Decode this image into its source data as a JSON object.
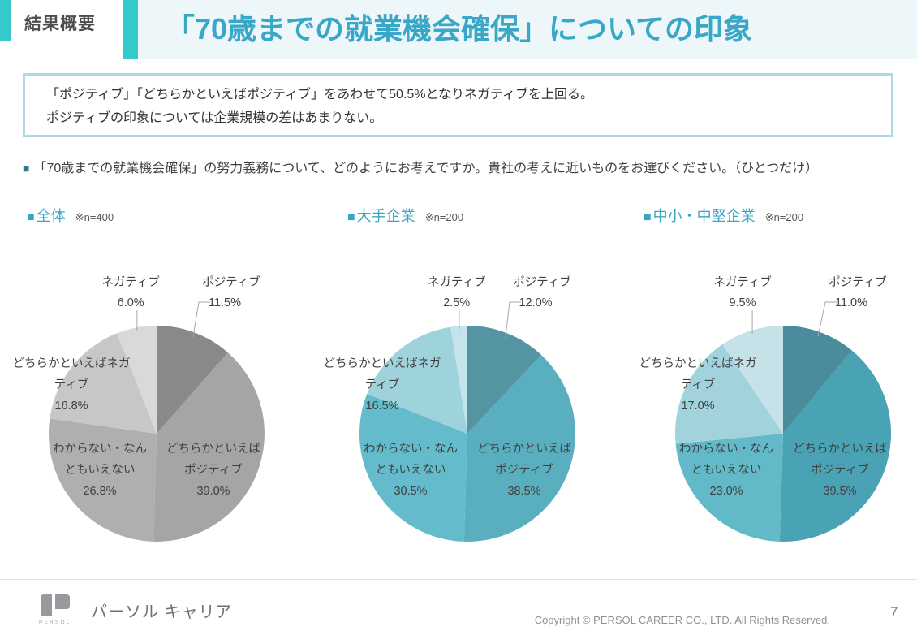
{
  "page": {
    "tag": "結果概要",
    "title": "「70歳までの就業機会確保」についての印象",
    "bullet": "■",
    "summary_lines": [
      "「ポジティブ」「どちらかといえばポジティブ」をあわせて50.5%となりネガティブを上回る。",
      "ポジティブの印象については企業規模の差はあまりない。"
    ],
    "question": "「70歳までの就業機会確保」の努力義務について、どのようにお考えですか。貴社の考えに近いものをお選びください。（ひとつだけ）"
  },
  "colors": {
    "accent": "#36c9cc",
    "title_bg": "#edf6f9",
    "title_text": "#38a7c8",
    "header_teal": "#3aa6c6",
    "question_bullet": "#2e7b90",
    "summary_border": "#abdbe8",
    "label_text": "#404040",
    "leader_line": "#a6a6a6",
    "footer_gray": "#8f9194"
  },
  "chart_data": [
    {
      "type": "pie",
      "title": "全体",
      "n_label": "※n=400",
      "categories": [
        "ポジティブ",
        "どちらかといえばポジティブ",
        "わからない・なんともいえない",
        "どちらかといえばネガティブ",
        "ネガティブ"
      ],
      "values": [
        11.5,
        39.0,
        26.8,
        16.8,
        6.0
      ],
      "value_labels": [
        "11.5%",
        "39.0%",
        "26.8%",
        "16.8%",
        "6.0%"
      ],
      "colors": [
        "#8a8888",
        "#a6a4a4",
        "#b1afae",
        "#c8c6c6",
        "#dad8d8"
      ]
    },
    {
      "type": "pie",
      "title": "大手企業",
      "n_label": "※n=200",
      "categories": [
        "ポジティブ",
        "どちらかといえばポジティブ",
        "わからない・なんともいえない",
        "どちらかといえばネガティブ",
        "ネガティブ"
      ],
      "values": [
        12.0,
        38.5,
        30.5,
        16.5,
        2.5
      ],
      "value_labels": [
        "12.0%",
        "38.5%",
        "30.5%",
        "16.5%",
        "2.5%"
      ],
      "colors": [
        "#5494a3",
        "#59aec0",
        "#63bbcb",
        "#9ed3db",
        "#c4e3ea"
      ]
    },
    {
      "type": "pie",
      "title": "中小・中堅企業",
      "n_label": "※n=200",
      "categories": [
        "ポジティブ",
        "どちらかといえばポジティブ",
        "わからない・なんともいえない",
        "どちらかといえばネガティブ",
        "ネガティブ"
      ],
      "values": [
        11.0,
        39.5,
        23.0,
        17.0,
        9.5
      ],
      "value_labels": [
        "11.0%",
        "39.5%",
        "23.0%",
        "17.0%",
        "9.5%"
      ],
      "colors": [
        "#4a8c9c",
        "#4aa2b5",
        "#62b9c8",
        "#a2d3dc",
        "#c6e2e9"
      ]
    }
  ],
  "footer": {
    "logo_text": "PERSOL",
    "brand": "パーソル キャリア",
    "copyright": "Copyright © PERSOL CAREER CO., LTD. All Rights Reserved.",
    "page_number": "7"
  }
}
